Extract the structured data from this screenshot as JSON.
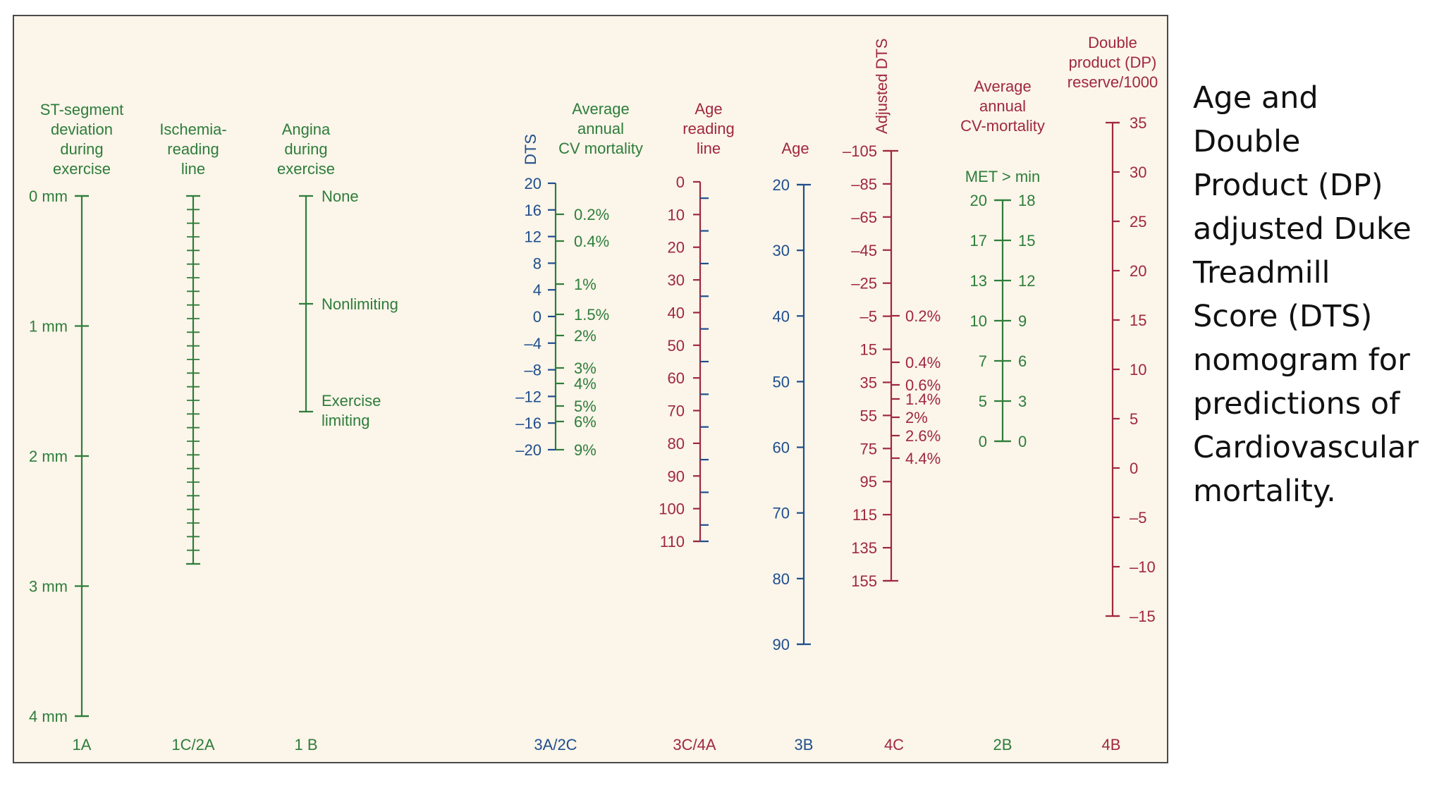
{
  "colors": {
    "green": "#2e7d3a",
    "blue": "#1f4e8c",
    "red": "#a0283c"
  },
  "caption": [
    "Age and",
    "Double",
    "Product (DP)",
    "adjusted Duke",
    "Treadmill",
    "Score (DTS)",
    "nomogram for",
    "predictions of",
    "Cardiovascular",
    "mortality."
  ],
  "columns": [
    {
      "id": "1a",
      "color": "green",
      "title": [
        "ST-segment",
        "deviation",
        "during",
        "exercise"
      ],
      "footer": "1A",
      "ticks": [
        "0 mm",
        "1 mm",
        "2 mm",
        "3 mm",
        "4 mm"
      ]
    },
    {
      "id": "1c2a",
      "color": "green",
      "title": [
        "Ischemia-",
        "reading",
        "line"
      ],
      "footer": "1C/2A"
    },
    {
      "id": "1b",
      "color": "green",
      "title": [
        "Angina",
        "during",
        "exercise"
      ],
      "footer": "1 B",
      "ticks": [
        "None",
        "Nonlimiting",
        "Exercise",
        "limiting"
      ]
    },
    {
      "id": "3a2c",
      "title_v": "DTS",
      "title": [
        "Average",
        "annual",
        "CV mortality"
      ],
      "footer": "3A/2C",
      "ticks_left": [
        "20",
        "16",
        "12",
        "8",
        "4",
        "0",
        "–4",
        "–8",
        "–12",
        "–16",
        "–20"
      ],
      "ticks_right": [
        "0.2%",
        "0.4%",
        "1%",
        "1.5%",
        "2%",
        "3%",
        "4%",
        "5%",
        "6%",
        "9%"
      ]
    },
    {
      "id": "3c4a",
      "color": "red",
      "title": [
        "Age",
        "reading",
        "line"
      ],
      "footer": "3C/4A",
      "ticks": [
        "0",
        "10",
        "20",
        "30",
        "40",
        "50",
        "60",
        "70",
        "80",
        "90",
        "100",
        "110"
      ]
    },
    {
      "id": "3b",
      "color": "blue",
      "title": [
        "Age"
      ],
      "footer": "3B",
      "ticks": [
        "20",
        "30",
        "40",
        "50",
        "60",
        "70",
        "80",
        "90"
      ]
    },
    {
      "id": "4c",
      "color": "red",
      "title_v": "Adjusted DTS",
      "footer": "4C",
      "ticks_left": [
        "–105",
        "–85",
        "–65",
        "–45",
        "–25",
        "–5",
        "15",
        "35",
        "55",
        "75",
        "95",
        "115",
        "135",
        "155"
      ],
      "ticks_right": [
        "0.2%",
        "0.4%",
        "0.6%",
        "1.4%",
        "2%",
        "2.6%",
        "4.4%"
      ]
    },
    {
      "id": "2b",
      "color": "green",
      "title": [
        "Average",
        "annual",
        "CV-mortality"
      ],
      "subtitle": "MET > min",
      "footer": "2B",
      "ticks_left": [
        "20",
        "17",
        "13",
        "10",
        "7",
        "5",
        "0"
      ],
      "ticks_right": [
        "18",
        "15",
        "12",
        "9",
        "6",
        "3",
        "0"
      ]
    },
    {
      "id": "4b",
      "color": "red",
      "title": [
        "Double",
        "product (DP)",
        "reserve/1000"
      ],
      "footer": "4B",
      "ticks": [
        "35",
        "30",
        "25",
        "20",
        "15",
        "10",
        "5",
        "0",
        "–5",
        "–10",
        "–15"
      ]
    }
  ]
}
